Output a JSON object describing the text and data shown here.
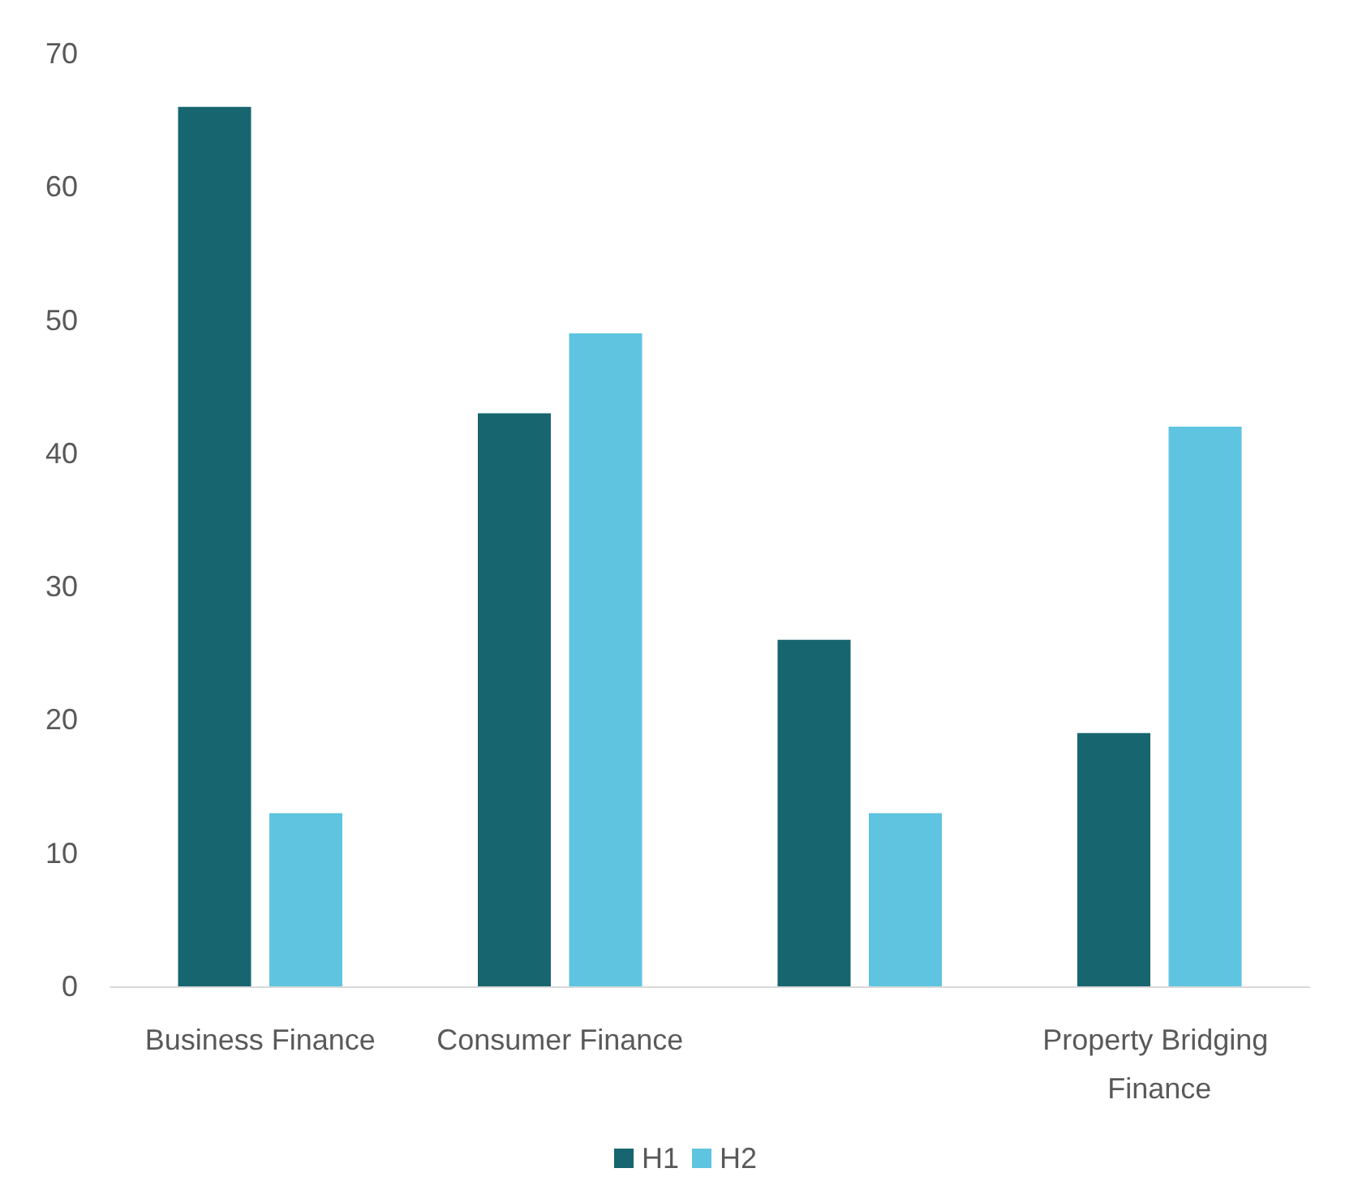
{
  "chart_data": {
    "type": "bar",
    "categories": [
      "Business Finance",
      "Consumer Finance",
      null,
      "Property Bridging Finance"
    ],
    "series": [
      {
        "name": "H1",
        "color": "#17666f",
        "values": [
          66,
          43,
          26,
          19
        ]
      },
      {
        "name": "H2",
        "color": "#5ec4e0",
        "values": [
          13,
          49,
          13,
          42
        ]
      }
    ],
    "ylim": [
      0,
      70
    ],
    "yticks": [
      0,
      10,
      20,
      30,
      40,
      50,
      60,
      70
    ],
    "grid": false,
    "legend": "bottom"
  }
}
